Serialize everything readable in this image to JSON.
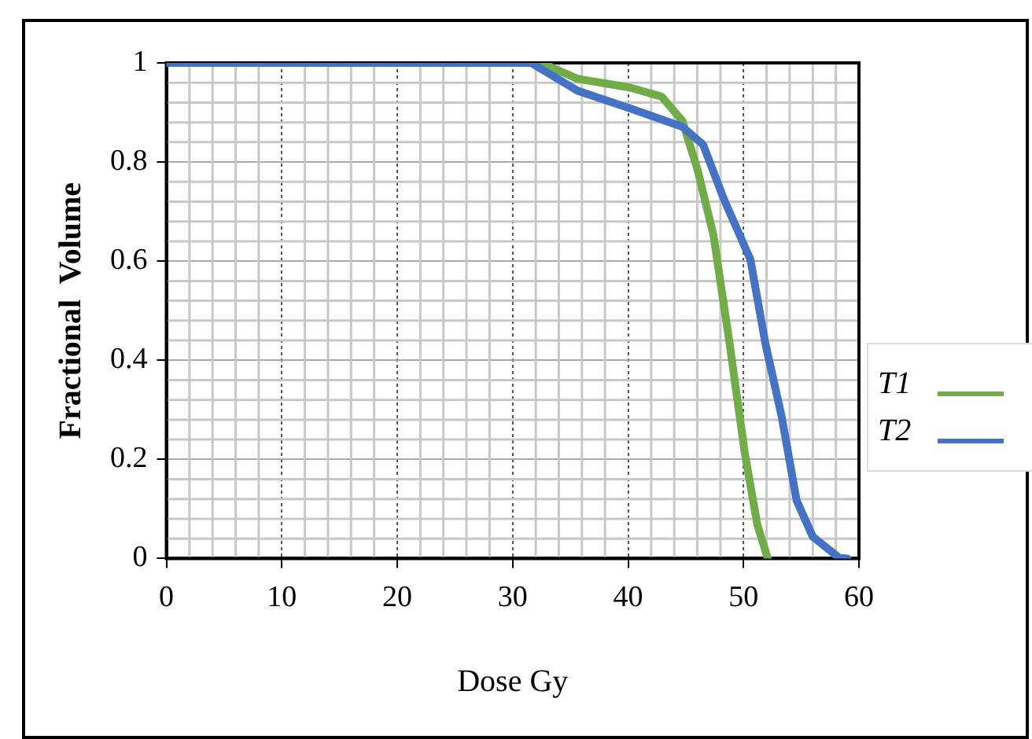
{
  "chart_data": {
    "type": "line",
    "xlabel": "Dose Gy",
    "ylabel": "Fractional  Volume",
    "xlim": [
      0,
      60
    ],
    "xticks": [
      0,
      10,
      20,
      30,
      40,
      50,
      60
    ],
    "ylim": [
      0,
      1
    ],
    "yticks": [
      0,
      0.2,
      0.4,
      0.6,
      0.8,
      1
    ],
    "grid": true,
    "legend": "right",
    "marker": "none",
    "line_style": "solid",
    "series": [
      {
        "name": "T1",
        "color": "#70ad47",
        "x": [
          32.5,
          35.6,
          40.2,
          42.9,
          44.7,
          46.0,
          47.4,
          48.8,
          50.1,
          51.2,
          52.1
        ],
        "values": [
          1,
          0.968,
          0.95,
          0.932,
          0.883,
          0.786,
          0.652,
          0.433,
          0.214,
          0.068,
          0
        ]
      },
      {
        "name": "T2",
        "color": "#4472c4",
        "x": [
          0,
          10,
          20,
          30,
          31.6,
          35.6,
          40.2,
          44.7,
          46.5,
          48.3,
          50.6,
          51.9,
          53.3,
          54.6,
          56.0,
          58.3,
          59
        ],
        "values": [
          1,
          1,
          1,
          1,
          1,
          0.944,
          0.908,
          0.871,
          0.835,
          0.725,
          0.603,
          0.433,
          0.287,
          0.117,
          0.044,
          0.001,
          0
        ]
      }
    ]
  }
}
